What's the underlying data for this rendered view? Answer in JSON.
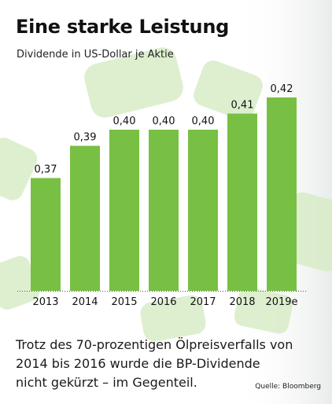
{
  "header": {
    "title": "Eine starke Leistung",
    "subtitle": "Dividende in US-Dollar je Aktie"
  },
  "caption": {
    "line1": "Trotz des 70-prozentigen Ölpreisverfalls von",
    "line2": "2014 bis 2016 wurde die BP-Dividende",
    "line3": "nicht gekürzt – im Gegenteil."
  },
  "source": "Quelle: Bloomberg",
  "colors": {
    "bar": "#77c043",
    "background_shapes": "#d6ecc5"
  },
  "chart_data": {
    "type": "bar",
    "title": "Eine starke Leistung",
    "subtitle": "Dividende in US-Dollar je Aktie",
    "categories": [
      "2013",
      "2014",
      "2015",
      "2016",
      "2017",
      "2018",
      "2019e"
    ],
    "values": [
      0.37,
      0.39,
      0.4,
      0.4,
      0.4,
      0.41,
      0.42
    ],
    "data_labels": [
      "0,37",
      "0,39",
      "0,40",
      "0,40",
      "0,40",
      "0,41",
      "0,42"
    ],
    "xlabel": "",
    "ylabel": "",
    "ylim": [
      0.3,
      0.42
    ],
    "grid": false,
    "legend": "none"
  }
}
